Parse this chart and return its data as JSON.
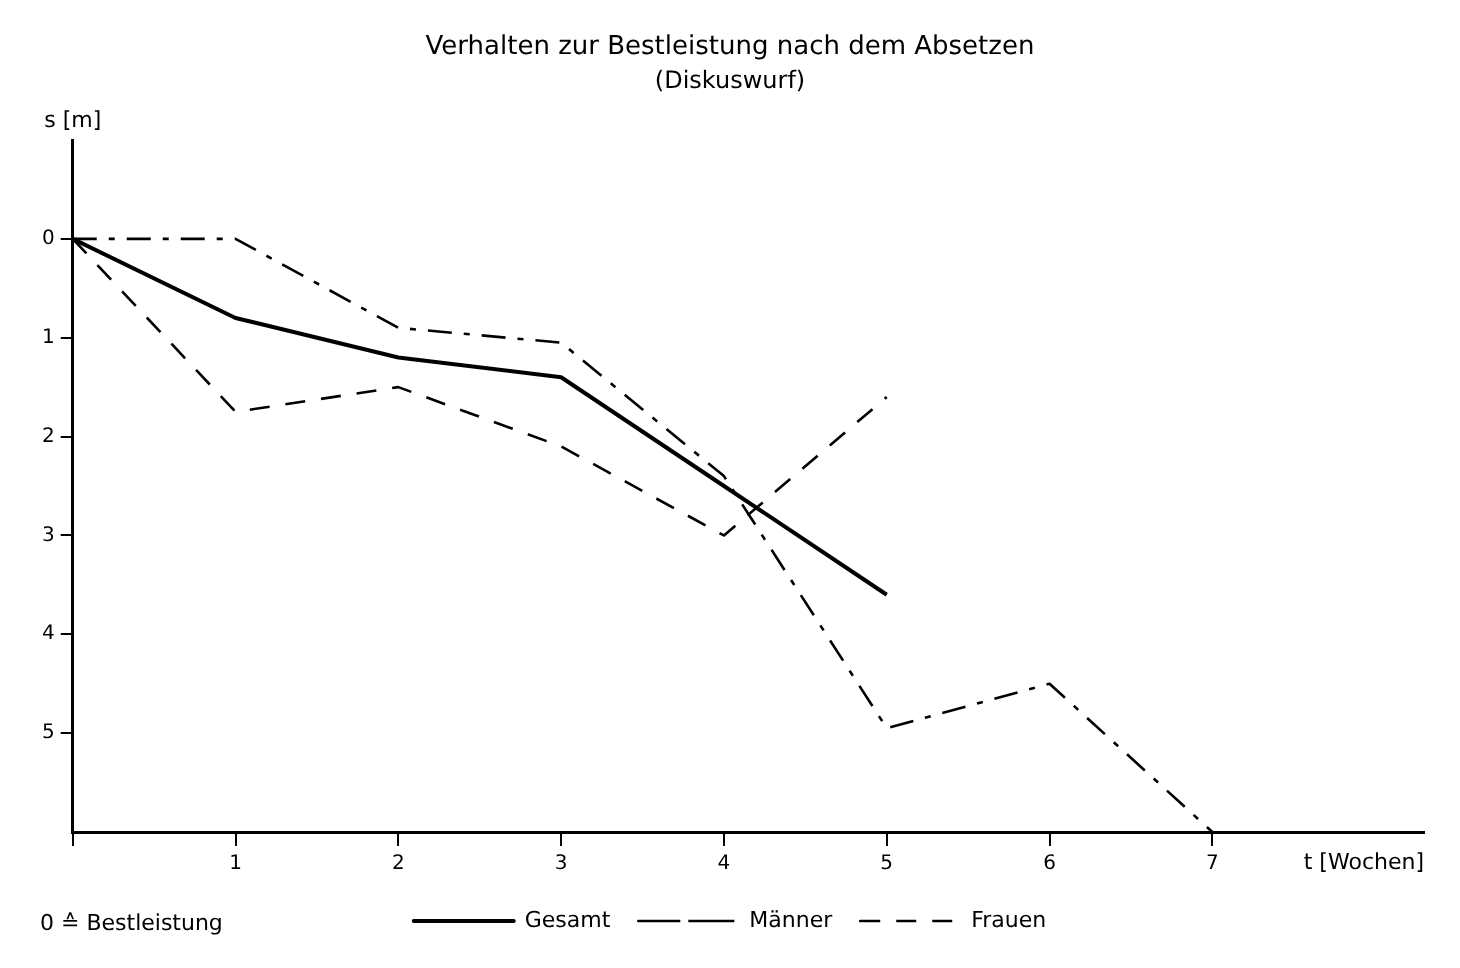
{
  "chart_data": {
    "type": "line",
    "title": "Verhalten zur Bestleistung nach dem Absetzen",
    "subtitle": "(Diskuswurf)",
    "xlabel": "t [Wochen]",
    "ylabel": "s [m]",
    "annotations": [
      "0 ≙ Bestleistung"
    ],
    "x": [
      0,
      1,
      2,
      3,
      4,
      5,
      6,
      7
    ],
    "series": [
      {
        "name": "Gesamt",
        "color": "#000000",
        "line_style": "solid",
        "values": [
          0,
          0.8,
          1.2,
          1.4,
          2.5,
          3.6,
          null,
          null
        ]
      },
      {
        "name": "Männer",
        "color": "#000000",
        "line_style": "dashed",
        "values": [
          0,
          0,
          0.9,
          1.05,
          2.4,
          4.95,
          4.5,
          6
        ]
      },
      {
        "name": "Frauen",
        "color": "#000000",
        "line_style": "dashed",
        "values": [
          0,
          1.75,
          1.5,
          2.1,
          3.0,
          1.6,
          null,
          null
        ]
      }
    ],
    "xlim": [
      0,
      8.3
    ],
    "xticks": [
      {
        "value": 0,
        "label": null
      },
      1,
      2,
      3,
      4,
      5,
      6,
      7
    ],
    "ylim": [
      6,
      -1
    ],
    "yticks": [
      0,
      1,
      2,
      3,
      4,
      5
    ],
    "grid": false,
    "legend": "bottom",
    "marker": "none"
  }
}
